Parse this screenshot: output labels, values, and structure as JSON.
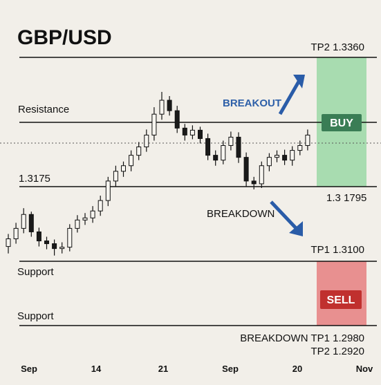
{
  "chart_data": {
    "type": "candlestick",
    "title": "GBP/USD",
    "ylim": [
      1.29,
      1.344
    ],
    "open": [
      1.309,
      1.3101,
      1.3116,
      1.3136,
      1.3111,
      1.3098,
      1.3094,
      1.3087,
      1.3089,
      1.3116,
      1.3128,
      1.3131,
      1.3141,
      1.3156,
      1.3184,
      1.3198,
      1.3206,
      1.3221,
      1.3233,
      1.325,
      1.328,
      1.33,
      1.3285,
      1.326,
      1.325,
      1.3257,
      1.3245,
      1.3221,
      1.3214,
      1.3235,
      1.3247,
      1.3218,
      1.3184,
      1.318,
      1.3206,
      1.3218,
      1.3221,
      1.3214,
      1.3228,
      1.3235
    ],
    "high": [
      1.3108,
      1.3124,
      1.3145,
      1.314,
      1.3117,
      1.3104,
      1.31,
      1.3096,
      1.3122,
      1.3135,
      1.3138,
      1.3148,
      1.3163,
      1.319,
      1.3206,
      1.3212,
      1.3228,
      1.324,
      1.3258,
      1.329,
      1.3312,
      1.3306,
      1.3292,
      1.3266,
      1.3264,
      1.3262,
      1.3252,
      1.3228,
      1.3242,
      1.3255,
      1.3254,
      1.3225,
      1.319,
      1.3212,
      1.3224,
      1.3228,
      1.3229,
      1.3234,
      1.3242,
      1.3258
    ],
    "low": [
      1.308,
      1.3094,
      1.3109,
      1.3104,
      1.309,
      1.3086,
      1.3077,
      1.308,
      1.3083,
      1.311,
      1.3121,
      1.3124,
      1.3134,
      1.3148,
      1.3176,
      1.319,
      1.3198,
      1.3214,
      1.3226,
      1.3242,
      1.3272,
      1.3278,
      1.3253,
      1.3242,
      1.3244,
      1.3238,
      1.3214,
      1.3206,
      1.3208,
      1.3228,
      1.321,
      1.3176,
      1.3172,
      1.3174,
      1.3198,
      1.3211,
      1.3207,
      1.3206,
      1.3221,
      1.3228
    ],
    "close": [
      1.3101,
      1.3116,
      1.3136,
      1.3111,
      1.3098,
      1.3094,
      1.3087,
      1.3089,
      1.3116,
      1.3128,
      1.3131,
      1.3141,
      1.3156,
      1.3184,
      1.3198,
      1.3206,
      1.3221,
      1.3233,
      1.325,
      1.328,
      1.33,
      1.3285,
      1.326,
      1.325,
      1.3257,
      1.3245,
      1.3221,
      1.3214,
      1.3235,
      1.3247,
      1.3218,
      1.3184,
      1.318,
      1.3206,
      1.3218,
      1.3221,
      1.3214,
      1.3228,
      1.3235,
      1.325
    ],
    "xtick_labels": [
      "Sep",
      "14",
      "21",
      "Sep",
      "20",
      "Nov"
    ],
    "annotations": [
      "TP2 1.3360",
      "Resistance",
      "BREAKOUT",
      "BUY",
      "1.3175",
      "1.3 1795",
      "BREAKDOWN",
      "TP1 1.3100",
      "Support",
      "SELL",
      "Support",
      "BREAKDOWN TP1 1.2980",
      "TP2 1.2920"
    ]
  }
}
